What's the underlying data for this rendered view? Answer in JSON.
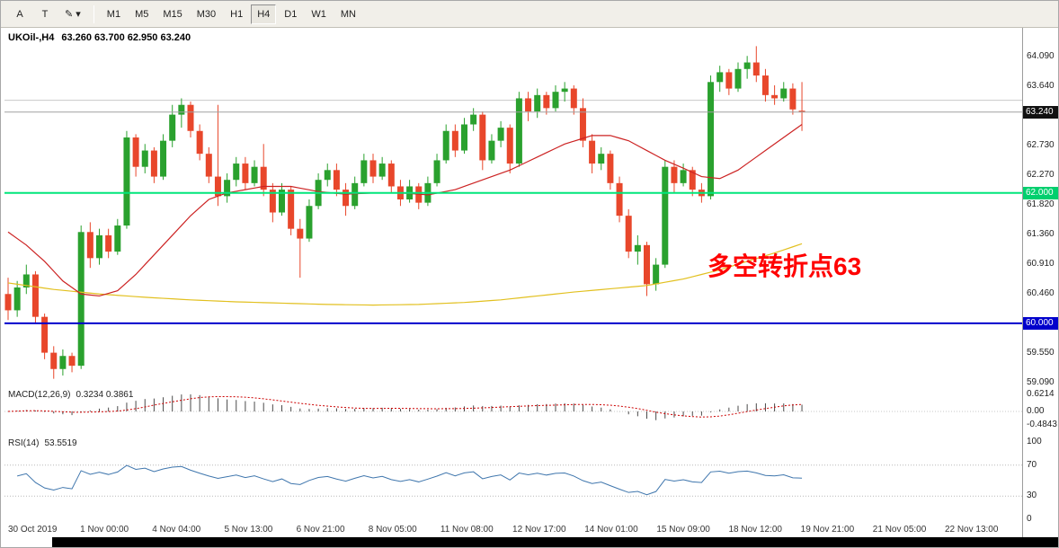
{
  "window": {
    "title": "UKOil-,H4"
  },
  "toolbar": {
    "tool_buttons": [
      {
        "name": "cursor",
        "label": "A"
      },
      {
        "name": "text",
        "label": "T"
      },
      {
        "name": "draw",
        "label": "✎",
        "caret": "▾"
      }
    ],
    "timeframes": [
      "M1",
      "M5",
      "M15",
      "M30",
      "H1",
      "H4",
      "D1",
      "W1",
      "MN"
    ],
    "active_timeframe": "H4"
  },
  "chart": {
    "title": "UKOil-,H4",
    "ohlc_text": "63.260 63.700 62.950 63.240"
  },
  "chart_data": {
    "type": "candlestick",
    "symbol": "UKOil-",
    "timeframe": "H4",
    "current_bar": {
      "open": 63.26,
      "high": 63.7,
      "low": 62.95,
      "close": 63.24
    },
    "up_color": "#2aa12e",
    "down_color": "#e8472b",
    "y_axis_ticks": [
      "64.090",
      "63.640",
      "62.730",
      "62.270",
      "61.820",
      "61.360",
      "60.910",
      "60.460",
      "59.550",
      "59.090"
    ],
    "x_axis_labels": [
      "30 Oct 2019",
      "1 Nov 00:00",
      "4 Nov 04:00",
      "5 Nov 13:00",
      "6 Nov 21:00",
      "8 Nov 05:00",
      "11 Nov 08:00",
      "12 Nov 17:00",
      "14 Nov 01:00",
      "15 Nov 09:00",
      "18 Nov 12:00",
      "19 Nov 21:00",
      "21 Nov 05:00",
      "22 Nov 13:00"
    ],
    "candles_ohlc": [
      [
        60.45,
        60.7,
        60.05,
        60.2
      ],
      [
        60.2,
        60.65,
        60.1,
        60.55
      ],
      [
        60.55,
        60.9,
        60.45,
        60.75
      ],
      [
        60.75,
        60.8,
        60.0,
        60.1
      ],
      [
        60.1,
        60.15,
        59.45,
        59.55
      ],
      [
        59.55,
        59.65,
        59.15,
        59.3
      ],
      [
        59.3,
        59.6,
        59.2,
        59.5
      ],
      [
        59.5,
        59.55,
        59.25,
        59.35
      ],
      [
        59.35,
        61.5,
        59.3,
        61.4
      ],
      [
        61.4,
        61.55,
        60.85,
        61.0
      ],
      [
        61.0,
        61.45,
        60.9,
        61.35
      ],
      [
        61.35,
        61.45,
        61.0,
        61.1
      ],
      [
        61.1,
        61.6,
        61.05,
        61.5
      ],
      [
        61.5,
        62.95,
        61.45,
        62.85
      ],
      [
        62.85,
        62.9,
        62.25,
        62.4
      ],
      [
        62.4,
        62.75,
        62.3,
        62.65
      ],
      [
        62.65,
        62.7,
        62.15,
        62.25
      ],
      [
        62.25,
        62.9,
        62.2,
        62.8
      ],
      [
        62.8,
        63.35,
        62.7,
        63.2
      ],
      [
        63.2,
        63.45,
        63.0,
        63.35
      ],
      [
        63.35,
        63.4,
        62.85,
        62.95
      ],
      [
        62.95,
        63.05,
        62.5,
        62.6
      ],
      [
        62.6,
        62.7,
        62.15,
        62.25
      ],
      [
        62.25,
        63.35,
        61.8,
        61.95
      ],
      [
        61.95,
        62.3,
        61.85,
        62.2
      ],
      [
        62.2,
        62.55,
        62.1,
        62.45
      ],
      [
        62.45,
        62.55,
        62.05,
        62.15
      ],
      [
        62.15,
        62.5,
        62.1,
        62.4
      ],
      [
        62.4,
        62.75,
        61.95,
        62.05
      ],
      [
        62.05,
        62.15,
        61.55,
        61.7
      ],
      [
        61.7,
        62.15,
        61.65,
        62.05
      ],
      [
        62.05,
        62.1,
        61.35,
        61.45
      ],
      [
        61.45,
        61.6,
        60.7,
        61.3
      ],
      [
        61.3,
        61.9,
        61.25,
        61.8
      ],
      [
        61.8,
        62.3,
        61.75,
        62.2
      ],
      [
        62.2,
        62.45,
        62.1,
        62.35
      ],
      [
        62.35,
        62.45,
        61.95,
        62.05
      ],
      [
        62.05,
        62.15,
        61.65,
        61.8
      ],
      [
        61.8,
        62.25,
        61.75,
        62.15
      ],
      [
        62.15,
        62.6,
        62.1,
        62.5
      ],
      [
        62.5,
        62.6,
        62.15,
        62.25
      ],
      [
        62.25,
        62.55,
        62.2,
        62.45
      ],
      [
        62.45,
        62.5,
        62.0,
        62.1
      ],
      [
        62.1,
        62.2,
        61.8,
        61.9
      ],
      [
        61.9,
        62.2,
        61.85,
        62.1
      ],
      [
        62.1,
        62.15,
        61.75,
        61.85
      ],
      [
        61.85,
        62.25,
        61.8,
        62.15
      ],
      [
        62.15,
        62.6,
        62.1,
        62.5
      ],
      [
        62.5,
        63.05,
        62.45,
        62.95
      ],
      [
        62.95,
        63.05,
        62.55,
        62.65
      ],
      [
        62.65,
        63.15,
        62.6,
        63.05
      ],
      [
        63.05,
        63.3,
        62.95,
        63.2
      ],
      [
        63.2,
        63.25,
        62.35,
        62.5
      ],
      [
        62.5,
        62.9,
        62.45,
        62.8
      ],
      [
        62.8,
        63.1,
        62.7,
        63.0
      ],
      [
        63.0,
        63.05,
        62.3,
        62.45
      ],
      [
        62.45,
        63.55,
        62.4,
        63.45
      ],
      [
        63.45,
        63.55,
        63.1,
        63.25
      ],
      [
        63.25,
        63.6,
        63.15,
        63.5
      ],
      [
        63.5,
        63.55,
        63.2,
        63.3
      ],
      [
        63.3,
        63.65,
        63.25,
        63.55
      ],
      [
        63.55,
        63.7,
        63.4,
        63.6
      ],
      [
        63.6,
        63.65,
        63.2,
        63.3
      ],
      [
        63.3,
        63.45,
        62.7,
        62.8
      ],
      [
        62.8,
        62.9,
        62.3,
        62.45
      ],
      [
        62.45,
        62.7,
        62.35,
        62.6
      ],
      [
        62.6,
        62.65,
        62.05,
        62.15
      ],
      [
        62.15,
        62.25,
        61.55,
        61.65
      ],
      [
        61.65,
        61.75,
        61.0,
        61.1
      ],
      [
        61.1,
        61.35,
        60.9,
        61.2
      ],
      [
        61.2,
        61.25,
        60.42,
        60.6
      ],
      [
        60.6,
        61.0,
        60.5,
        60.9
      ],
      [
        60.9,
        62.5,
        60.85,
        62.4
      ],
      [
        62.4,
        62.5,
        62.0,
        62.15
      ],
      [
        62.15,
        62.45,
        62.1,
        62.35
      ],
      [
        62.35,
        62.4,
        61.95,
        62.05
      ],
      [
        62.05,
        62.15,
        61.85,
        61.95
      ],
      [
        61.95,
        63.8,
        61.9,
        63.7
      ],
      [
        63.7,
        63.95,
        63.55,
        63.85
      ],
      [
        63.85,
        63.9,
        63.5,
        63.6
      ],
      [
        63.6,
        64.0,
        63.55,
        63.9
      ],
      [
        63.9,
        64.1,
        63.75,
        64.0
      ],
      [
        64.0,
        64.25,
        63.7,
        63.8
      ],
      [
        63.8,
        63.9,
        63.4,
        63.5
      ],
      [
        63.5,
        63.65,
        63.35,
        63.45
      ],
      [
        63.45,
        63.7,
        63.4,
        63.6
      ],
      [
        63.6,
        63.68,
        63.2,
        63.28
      ],
      [
        63.26,
        63.7,
        62.95,
        63.24
      ]
    ],
    "ma_fast": {
      "name": "ma-red",
      "color": "#cc2222",
      "points": [
        [
          0,
          61.4
        ],
        [
          2,
          61.2
        ],
        [
          4,
          60.95
        ],
        [
          6,
          60.65
        ],
        [
          8,
          60.45
        ],
        [
          10,
          60.42
        ],
        [
          12,
          60.5
        ],
        [
          14,
          60.75
        ],
        [
          16,
          61.05
        ],
        [
          18,
          61.35
        ],
        [
          20,
          61.65
        ],
        [
          22,
          61.9
        ],
        [
          24,
          62.0
        ],
        [
          26,
          62.05
        ],
        [
          28,
          62.1
        ],
        [
          31,
          62.1
        ],
        [
          34,
          62.02
        ],
        [
          37,
          61.98
        ],
        [
          40,
          62.0
        ],
        [
          43,
          62.0
        ],
        [
          46,
          61.97
        ],
        [
          49,
          62.05
        ],
        [
          52,
          62.2
        ],
        [
          55,
          62.35
        ],
        [
          58,
          62.55
        ],
        [
          61,
          62.75
        ],
        [
          64,
          62.88
        ],
        [
          66,
          62.88
        ],
        [
          68,
          62.8
        ],
        [
          70,
          62.65
        ],
        [
          72,
          62.5
        ],
        [
          74,
          62.38
        ],
        [
          76,
          62.25
        ],
        [
          78,
          62.22
        ],
        [
          80,
          62.35
        ],
        [
          82,
          62.55
        ],
        [
          84,
          62.75
        ],
        [
          86,
          62.95
        ],
        [
          87,
          63.05
        ]
      ]
    },
    "ma_slow": {
      "name": "ma-yellow",
      "color": "#e2c01f",
      "points": [
        [
          0,
          60.62
        ],
        [
          5,
          60.52
        ],
        [
          10,
          60.45
        ],
        [
          15,
          60.4
        ],
        [
          20,
          60.36
        ],
        [
          25,
          60.33
        ],
        [
          30,
          60.31
        ],
        [
          35,
          60.29
        ],
        [
          40,
          60.28
        ],
        [
          45,
          60.29
        ],
        [
          50,
          60.32
        ],
        [
          54,
          60.36
        ],
        [
          58,
          60.42
        ],
        [
          62,
          60.48
        ],
        [
          66,
          60.53
        ],
        [
          70,
          60.58
        ],
        [
          74,
          60.68
        ],
        [
          78,
          60.82
        ],
        [
          81,
          60.95
        ],
        [
          84,
          61.08
        ],
        [
          87,
          61.22
        ]
      ]
    },
    "hlines": [
      {
        "price": 63.42,
        "color": "#c8c8c8",
        "width": 1
      },
      {
        "price": 62.0,
        "color": "#00e57a",
        "width": 2,
        "label": "62.000",
        "label_bg": "#00cf6e"
      },
      {
        "price": 60.0,
        "color": "#0000cc",
        "width": 2,
        "label": "60.000",
        "label_bg": "#0000cc"
      },
      {
        "price": 63.24,
        "color": "#a0a0a0",
        "width": 1,
        "label": "63.240",
        "label_bg": "#111111"
      }
    ],
    "annotation": {
      "text": "多空转折点63",
      "color": "#ff0000"
    },
    "macd": {
      "label": "MACD(12,26,9)",
      "values_text": "0.3234 0.3861",
      "axis_labels": [
        "0.6214",
        "0.00",
        "-0.4843"
      ],
      "histogram_color": "#4a4a4a",
      "signal_color": "#cc0000"
    },
    "rsi": {
      "label": "RSI(14)",
      "value_text": "53.5519",
      "axis_labels": [
        "100",
        "70",
        "30",
        "0"
      ],
      "levels": [
        70,
        30
      ],
      "line_color": "#3f76ad"
    }
  }
}
